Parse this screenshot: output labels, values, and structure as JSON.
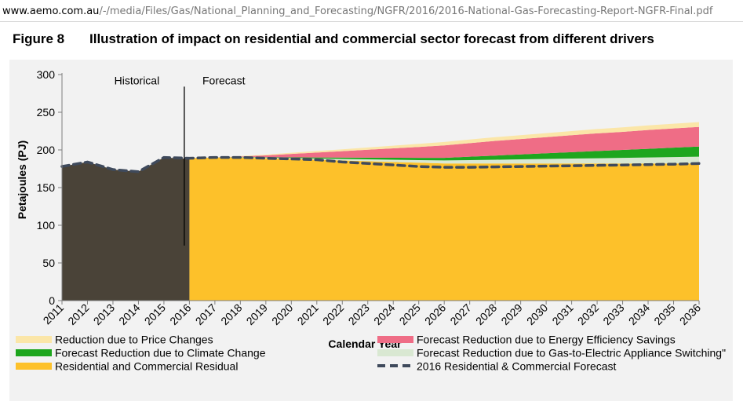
{
  "browser": {
    "url_domain": "www.aemo.com.au",
    "url_path": "/-/media/Files/Gas/National_Planning_and_Forecasting/NGFR/2016/2016-National-Gas-Forecasting-Report-NGFR-Final.pdf"
  },
  "figure": {
    "label": "Figure 8",
    "title": "Illustration of impact on residential and commercial sector forecast from different drivers"
  },
  "colors": {
    "historical": "#4a4338",
    "residual": "#fdc12a",
    "gas_switch": "#d9e8d2",
    "climate": "#1ea61e",
    "efficiency": "#ef6d86",
    "price": "#fbe6a8",
    "forecast_line": "#3f4a5c"
  },
  "chart_data": {
    "type": "area",
    "xlabel": "Calendar Year",
    "ylabel": "Petajoules (PJ)",
    "ylim": [
      0,
      300
    ],
    "yticks": [
      0,
      50,
      100,
      150,
      200,
      250,
      300
    ],
    "x": [
      2011,
      2012,
      2013,
      2014,
      2015,
      2016,
      2017,
      2018,
      2019,
      2020,
      2021,
      2022,
      2023,
      2024,
      2025,
      2026,
      2027,
      2028,
      2029,
      2030,
      2031,
      2032,
      2033,
      2034,
      2035,
      2036
    ],
    "x_labels": [
      "2011",
      "2012",
      "2013",
      "2014",
      "2015",
      "2016",
      "2017",
      "2018",
      "2019",
      "2020",
      "2021",
      "2022",
      "2023",
      "2024",
      "2025",
      "2026",
      "2027",
      "2028",
      "2029",
      "2030",
      "2031",
      "2032",
      "2033",
      "2034",
      "2035",
      "2036"
    ],
    "regions": [
      {
        "label": "Historical",
        "from": 2011,
        "to": 2016
      },
      {
        "label": "Forecast",
        "from": 2016,
        "to": 2036
      }
    ],
    "divider_x": 2015.8,
    "historical": {
      "x": [
        2011,
        2012,
        2013,
        2014,
        2015,
        2016
      ],
      "values": [
        178,
        184,
        174,
        171,
        190,
        188
      ]
    },
    "stacked_series": [
      {
        "name": "Residential and Commercial Residual",
        "key": "residual",
        "x": [
          2016,
          2017,
          2018,
          2019,
          2020,
          2021,
          2022,
          2023,
          2024,
          2025,
          2026,
          2027,
          2028,
          2029,
          2030,
          2031,
          2032,
          2033,
          2034,
          2035,
          2036
        ],
        "values": [
          189,
          190,
          190,
          189,
          188,
          187,
          186,
          185,
          184,
          183,
          182,
          182,
          182,
          182,
          182,
          182,
          182,
          182,
          182,
          182,
          182
        ]
      },
      {
        "name": "Forecast Reduction due to Gas-to-Electric Appliance Switching\"",
        "key": "gas_switch",
        "x": [
          2016,
          2017,
          2018,
          2019,
          2020,
          2021,
          2022,
          2023,
          2024,
          2025,
          2026,
          2027,
          2028,
          2029,
          2030,
          2031,
          2032,
          2033,
          2034,
          2035,
          2036
        ],
        "values": [
          0,
          0,
          0.4,
          0.8,
          1.2,
          1.6,
          2,
          2.5,
          3,
          3.5,
          4,
          4.5,
          5,
          5.5,
          6,
          6.5,
          7,
          7.5,
          8,
          8.5,
          9
        ]
      },
      {
        "name": "Forecast Reduction due to Climate Change",
        "key": "climate",
        "x": [
          2016,
          2017,
          2018,
          2019,
          2020,
          2021,
          2022,
          2023,
          2024,
          2025,
          2026,
          2027,
          2028,
          2029,
          2030,
          2031,
          2032,
          2033,
          2034,
          2035,
          2036
        ],
        "values": [
          0,
          0,
          0.3,
          0.6,
          1,
          1.4,
          1.8,
          2.2,
          2.6,
          3,
          3.5,
          4.5,
          5.5,
          6.5,
          7.5,
          8.5,
          9.5,
          10.5,
          11.5,
          12.5,
          13.5
        ]
      },
      {
        "name": "Forecast Reduction due to Energy Efficiency Savings",
        "key": "efficiency",
        "x": [
          2016,
          2017,
          2018,
          2019,
          2020,
          2021,
          2022,
          2023,
          2024,
          2025,
          2026,
          2027,
          2028,
          2029,
          2030,
          2031,
          2032,
          2033,
          2034,
          2035,
          2036
        ],
        "values": [
          0,
          0,
          0.8,
          2.3,
          4.5,
          6.5,
          8.5,
          10.5,
          12.5,
          14.5,
          16.5,
          18,
          19.5,
          20.5,
          21.5,
          22.5,
          23.5,
          24,
          25,
          25.5,
          26
        ]
      },
      {
        "name": "Reduction due to Price Changes",
        "key": "price",
        "x": [
          2016,
          2017,
          2018,
          2019,
          2020,
          2021,
          2022,
          2023,
          2024,
          2025,
          2026,
          2027,
          2028,
          2029,
          2030,
          2031,
          2032,
          2033,
          2034,
          2035,
          2036
        ],
        "values": [
          0,
          0,
          0.5,
          1,
          1.5,
          2,
          2.5,
          3,
          3.5,
          4,
          4.5,
          4.7,
          4.9,
          5.1,
          5.3,
          5.5,
          5.7,
          5.9,
          6.1,
          6.3,
          6.5
        ]
      }
    ],
    "line_series": {
      "name": "2016 Residential & Commercial Forecast",
      "x": [
        2011,
        2012,
        2013,
        2014,
        2015,
        2016,
        2017,
        2018,
        2019,
        2020,
        2021,
        2022,
        2023,
        2024,
        2025,
        2026,
        2027,
        2028,
        2029,
        2030,
        2031,
        2032,
        2033,
        2034,
        2035,
        2036
      ],
      "values": [
        178,
        184,
        174,
        171,
        190,
        189,
        190,
        190,
        189,
        188,
        187,
        184,
        182,
        180,
        178,
        177,
        177,
        177.5,
        178,
        178.5,
        179,
        179.5,
        180,
        180.5,
        181,
        182
      ]
    },
    "legend": [
      {
        "label": "Reduction due to Price Changes",
        "key": "price",
        "style": "fill"
      },
      {
        "label": "Forecast Reduction due to Energy Efficiency Savings",
        "key": "efficiency",
        "style": "fill"
      },
      {
        "label": "Forecast Reduction due to Climate Change",
        "key": "climate",
        "style": "fill"
      },
      {
        "label": "Forecast Reduction due to Gas-to-Electric Appliance Switching\"",
        "key": "gas_switch",
        "style": "fill"
      },
      {
        "label": "Residential and Commercial Residual",
        "key": "residual",
        "style": "fill"
      },
      {
        "label": "2016 Residential & Commercial Forecast",
        "key": "forecast_line",
        "style": "dash"
      }
    ]
  }
}
